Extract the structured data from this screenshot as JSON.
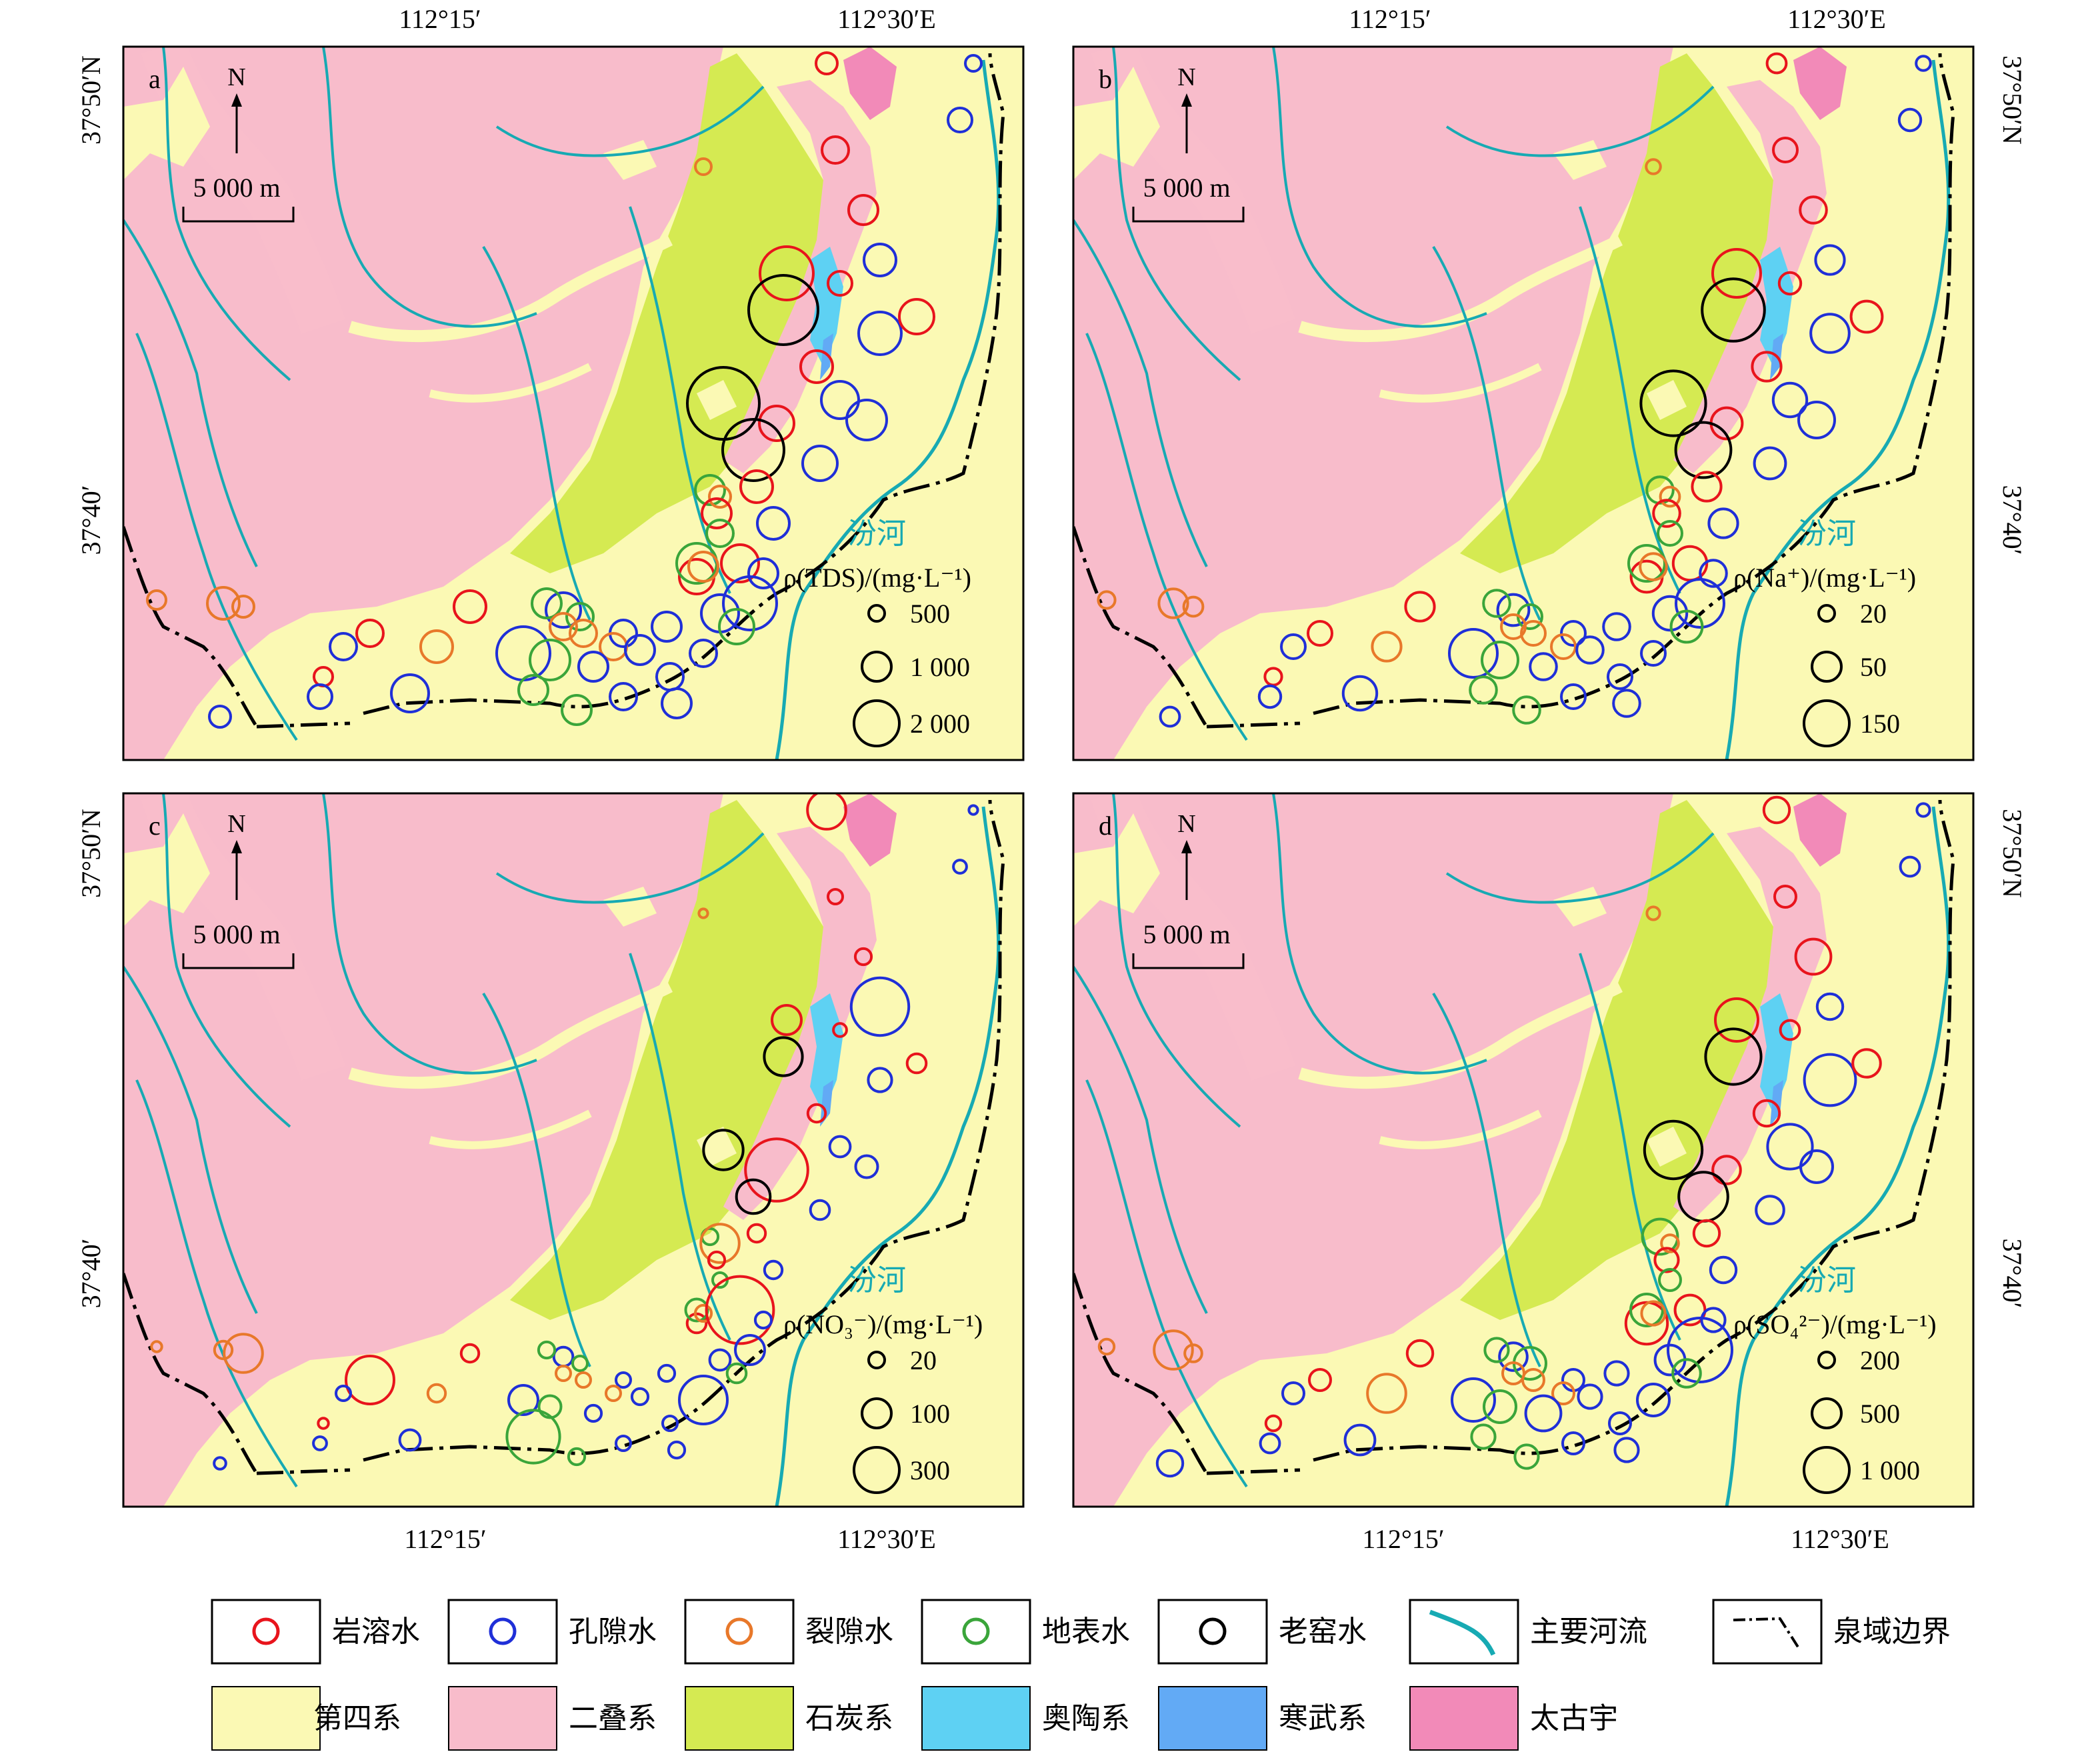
{
  "coord_labels": {
    "top_left_lon": "112°15′",
    "top_right_lon": "112°30′E",
    "bottom_left_lon": "112°15′",
    "bottom_right_lon": "112°30′E",
    "lat_north": "37°50′N",
    "lat_south": "37°40′"
  },
  "panels": [
    {
      "letter": "a",
      "north": "N",
      "scale": "5 000 m",
      "river": "汾河",
      "legend_title": "ρ(TDS)/(mg·L⁻¹)",
      "legend_items": [
        "500",
        "1 000",
        "2 000"
      ]
    },
    {
      "letter": "b",
      "north": "N",
      "scale": "5 000 m",
      "river": "汾河",
      "legend_title": "ρ(Na⁺)/(mg·L⁻¹)",
      "legend_items": [
        "20",
        "50",
        "150"
      ]
    },
    {
      "letter": "c",
      "north": "N",
      "scale": "5 000 m",
      "river": "汾河",
      "legend_title": "ρ(NO₃⁻)/(mg·L⁻¹)",
      "legend_items": [
        "20",
        "100",
        "300"
      ]
    },
    {
      "letter": "d",
      "north": "N",
      "scale": "5 000 m",
      "river": "汾河",
      "legend_title": "ρ(SO₄²⁻)/(mg·L⁻¹)",
      "legend_items": [
        "200",
        "500",
        "1 000"
      ]
    }
  ],
  "legend": {
    "symbols": [
      {
        "label": "岩溶水",
        "color": "#e8141c",
        "kind": "circle"
      },
      {
        "label": "孔隙水",
        "color": "#1f2fd8",
        "kind": "circle"
      },
      {
        "label": "裂隙水",
        "color": "#e8782a",
        "kind": "circle"
      },
      {
        "label": "地表水",
        "color": "#3aa53a",
        "kind": "circle"
      },
      {
        "label": "老窑水",
        "color": "#000000",
        "kind": "circle"
      },
      {
        "label": "主要河流",
        "color": "#17aab3",
        "kind": "river"
      },
      {
        "label": "泉域边界",
        "color": "#000000",
        "kind": "boundary"
      }
    ],
    "strata": [
      {
        "label": "第四系",
        "color": "#fbf9b4"
      },
      {
        "label": "二叠系",
        "color": "#f8bccb"
      },
      {
        "label": "石炭系",
        "color": "#d5ea52"
      },
      {
        "label": "奥陶系",
        "color": "#5ed1f3"
      },
      {
        "label": "寒武系",
        "color": "#62aaf5"
      },
      {
        "label": "太古宇",
        "color": "#f28ab8"
      }
    ]
  },
  "colors": {
    "quaternary": "#fbf9b4",
    "permian": "#f8bccb",
    "carboniferous": "#d5ea52",
    "ordovician": "#5ed1f3",
    "cambrian": "#62aaf5",
    "archean": "#f28ab8",
    "river": "#17aab3",
    "karst": "#e8141c",
    "pore": "#1f2fd8",
    "fissure": "#e8782a",
    "surface": "#3aa53a",
    "mine": "#000000"
  }
}
